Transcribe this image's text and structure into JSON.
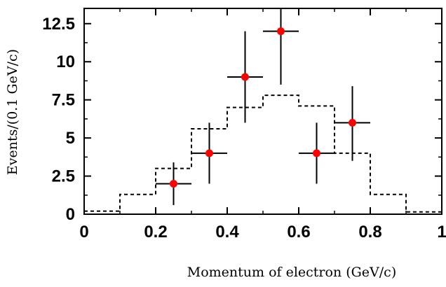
{
  "chart_data": {
    "type": "scatter",
    "title": "",
    "xlabel": "Momentum of electron (GeV/c)",
    "ylabel": "Events/(0.1 GeV/c)",
    "xlim": [
      0,
      1
    ],
    "ylim": [
      0,
      13.5
    ],
    "xticks": [
      0,
      0.2,
      0.4,
      0.6,
      0.8,
      1
    ],
    "xtick_labels": [
      "0",
      "0.2",
      "0.4",
      "0.6",
      "0.8",
      "1"
    ],
    "yticks": [
      0,
      2.5,
      5,
      7.5,
      10,
      12.5
    ],
    "ytick_labels": [
      "0",
      "2.5",
      "5",
      "7.5",
      "10",
      "12.5"
    ],
    "grid": false,
    "series": [
      {
        "style": "points-with-errorbars",
        "color": "#ff0000",
        "points": [
          {
            "x": 0.25,
            "y": 2,
            "xerr": 0.05,
            "ylo": 0.6,
            "yhi": 3.4
          },
          {
            "x": 0.35,
            "y": 4,
            "xerr": 0.05,
            "ylo": 2,
            "yhi": 6
          },
          {
            "x": 0.45,
            "y": 9,
            "xerr": 0.05,
            "ylo": 6,
            "yhi": 12
          },
          {
            "x": 0.55,
            "y": 12,
            "xerr": 0.05,
            "ylo": 8.5,
            "yhi": 13.5
          },
          {
            "x": 0.65,
            "y": 4,
            "xerr": 0.05,
            "ylo": 2,
            "yhi": 6
          },
          {
            "x": 0.75,
            "y": 6,
            "xerr": 0.05,
            "ylo": 3.5,
            "yhi": 8.4
          }
        ]
      },
      {
        "style": "dashed-step-histogram",
        "color": "#000000",
        "bin_edges": [
          0,
          0.1,
          0.2,
          0.3,
          0.4,
          0.5,
          0.6,
          0.7,
          0.8,
          0.9,
          1.0
        ],
        "values": [
          0.2,
          1.3,
          3.0,
          5.6,
          7.0,
          7.8,
          7.1,
          4.0,
          1.3,
          0.15
        ]
      }
    ]
  }
}
